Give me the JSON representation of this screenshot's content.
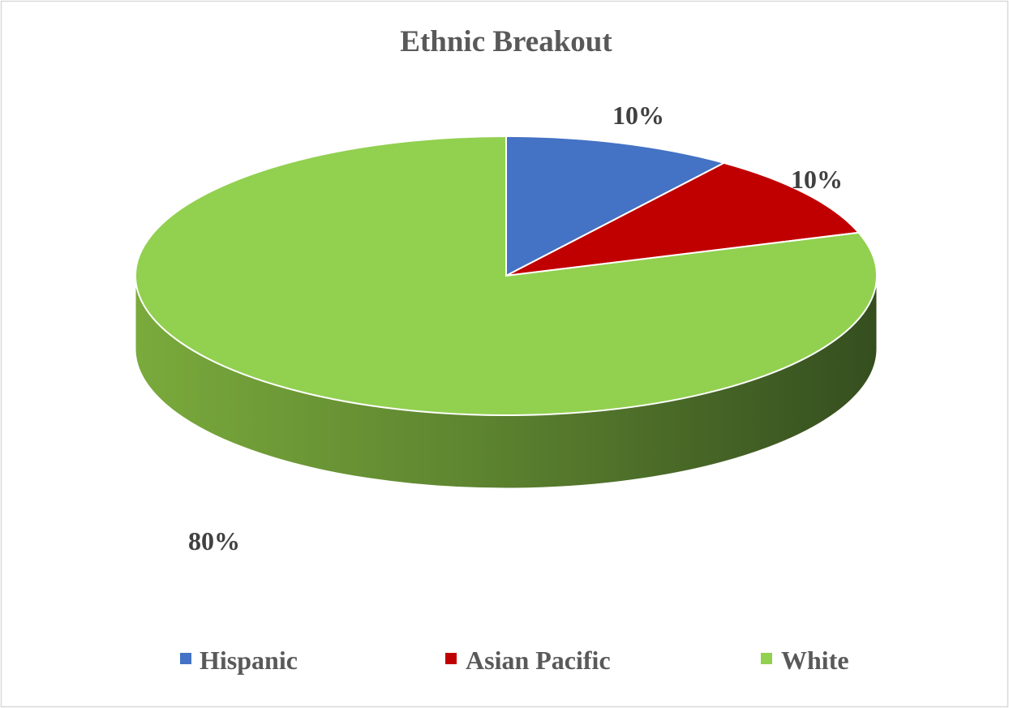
{
  "chart_data": {
    "type": "pie",
    "title": "Ethnic Breakout",
    "categories": [
      "Hispanic",
      "Asian Pacific",
      "White"
    ],
    "values": [
      10,
      10,
      80
    ],
    "labels": [
      "10%",
      "10%",
      "80%"
    ],
    "colors": [
      "#4472C4",
      "#C00000",
      "#92D050"
    ],
    "side_color_light": "#7AAA3C",
    "side_color_dark": "#354E1F",
    "three_d": true,
    "legend_position": "bottom"
  }
}
